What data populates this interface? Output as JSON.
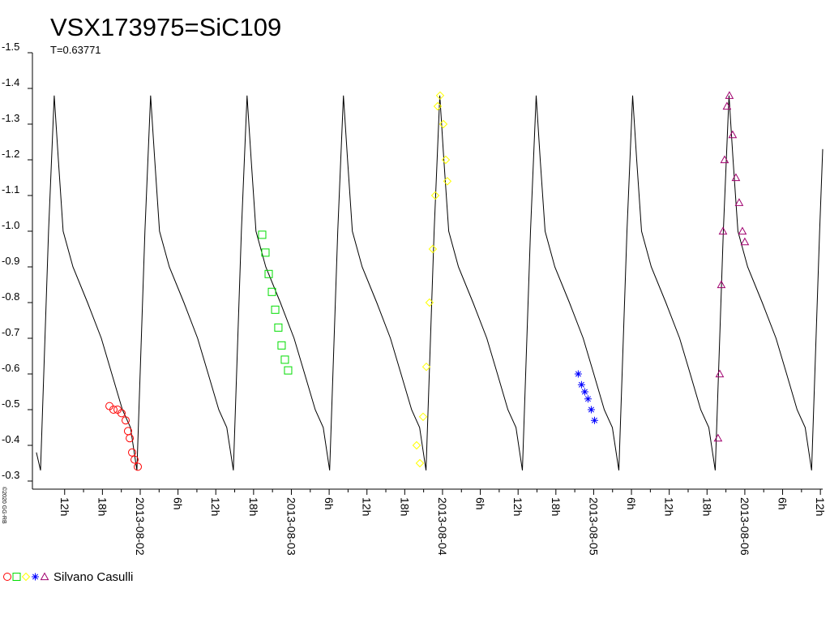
{
  "chart_data": {
    "type": "scatter",
    "title": "VSX173975=SiC109",
    "subtitle": "T=0.63771",
    "credit": "©2020 GG-RB",
    "observer": "Silvano Casulli",
    "ylim": [
      -0.3,
      -1.5
    ],
    "yticks": [
      -1.5,
      -1.4,
      -1.3,
      -1.2,
      -1.1,
      {
        "value": -1,
        "label": "-1.0"
      },
      -0.9,
      -0.8,
      -0.7,
      -0.6,
      -0.5,
      -0.4,
      -0.3
    ],
    "xlim": [
      "2013-08-01 06:53",
      "2013-08-06 12:22"
    ],
    "xticks": [
      {
        "value": "2013-08-01 12:00",
        "label": "12h"
      },
      {
        "value": "2013-08-01 18:00",
        "label": "18h"
      },
      {
        "value": "2013-08-02 00:00",
        "label": "2013-08-02"
      },
      {
        "value": "2013-08-02 06:00",
        "label": "6h"
      },
      {
        "value": "2013-08-02 12:00",
        "label": "12h"
      },
      {
        "value": "2013-08-02 18:00",
        "label": "18h"
      },
      {
        "value": "2013-08-03 00:00",
        "label": "2013-08-03"
      },
      {
        "value": "2013-08-03 06:00",
        "label": "6h"
      },
      {
        "value": "2013-08-03 12:00",
        "label": "12h"
      },
      {
        "value": "2013-08-03 18:00",
        "label": "18h"
      },
      {
        "value": "2013-08-04 00:00",
        "label": "2013-08-04"
      },
      {
        "value": "2013-08-04 06:00",
        "label": "6h"
      },
      {
        "value": "2013-08-04 12:00",
        "label": "12h"
      },
      {
        "value": "2013-08-04 18:00",
        "label": "18h"
      },
      {
        "value": "2013-08-05 00:00",
        "label": "2013-08-05"
      },
      {
        "value": "2013-08-05 06:00",
        "label": "6h"
      },
      {
        "value": "2013-08-05 12:00",
        "label": "12h"
      },
      {
        "value": "2013-08-05 18:00",
        "label": "18h"
      },
      {
        "value": "2013-08-06 00:00",
        "label": "2013-08-06"
      },
      {
        "value": "2013-08-06 06:00",
        "label": "6h"
      },
      {
        "value": "2013-08-06 12:00",
        "label": "12h"
      }
    ],
    "model": {
      "color": "#000000",
      "x": [
        "2013-08-01 07:31",
        "2013-08-01 08:10",
        "2013-08-01 09:27",
        "2013-08-01 10:21",
        "2013-08-01 11:00",
        "2013-08-01 11:46",
        "2013-08-01 13:19",
        "2013-08-01 15:38",
        "2013-08-01 17:49",
        "2013-08-01 19:30",
        "2013-08-01 21:10",
        "2013-08-01 22:27",
        "2013-08-01 23:28",
        "2013-08-02 00:45",
        "2013-08-02 01:39",
        "2013-08-02 02:18",
        "2013-08-02 03:04",
        "2013-08-02 04:37",
        "2013-08-02 06:56",
        "2013-08-02 09:07",
        "2013-08-02 10:48",
        "2013-08-02 12:28",
        "2013-08-02 13:45",
        "2013-08-02 14:47",
        "2013-08-02 16:04",
        "2013-08-02 16:58",
        "2013-08-02 17:37",
        "2013-08-02 18:23",
        "2013-08-02 19:56",
        "2013-08-02 22:15",
        "2013-08-03 00:26",
        "2013-08-03 02:07",
        "2013-08-03 03:47",
        "2013-08-03 05:04",
        "2013-08-03 06:05",
        "2013-08-03 07:22",
        "2013-08-03 08:16",
        "2013-08-03 08:55",
        "2013-08-03 09:41",
        "2013-08-03 11:14",
        "2013-08-03 13:33",
        "2013-08-03 15:44",
        "2013-08-03 17:25",
        "2013-08-03 19:05",
        "2013-08-03 20:22",
        "2013-08-03 21:23",
        "2013-08-03 22:40",
        "2013-08-03 23:34",
        "2013-08-04 00:13",
        "2013-08-04 00:59",
        "2013-08-04 02:32",
        "2013-08-04 04:51",
        "2013-08-04 07:02",
        "2013-08-04 08:43",
        "2013-08-04 10:23",
        "2013-08-04 11:40",
        "2013-08-04 12:41",
        "2013-08-04 13:58",
        "2013-08-04 14:52",
        "2013-08-04 15:31",
        "2013-08-04 16:17",
        "2013-08-04 17:50",
        "2013-08-04 20:09",
        "2013-08-04 22:20",
        "2013-08-05 00:01",
        "2013-08-05 01:41",
        "2013-08-05 02:58",
        "2013-08-05 04:00",
        "2013-08-05 05:17",
        "2013-08-05 06:11",
        "2013-08-05 06:50",
        "2013-08-05 07:36",
        "2013-08-05 09:09",
        "2013-08-05 11:28",
        "2013-08-05 13:39",
        "2013-08-05 15:20",
        "2013-08-05 17:00",
        "2013-08-05 18:17",
        "2013-08-05 19:18",
        "2013-08-05 20:35",
        "2013-08-05 21:29",
        "2013-08-05 22:08",
        "2013-08-05 22:54",
        "2013-08-06 00:27",
        "2013-08-06 02:46",
        "2013-08-06 04:57",
        "2013-08-06 06:38",
        "2013-08-06 08:18",
        "2013-08-06 09:35",
        "2013-08-06 10:36",
        "2013-08-06 11:53",
        "2013-08-06 12:22"
      ],
      "values": [
        -0.38,
        -0.33,
        -1.0,
        -1.38,
        -1.2,
        -1.0,
        -0.9,
        -0.8,
        -0.7,
        -0.6,
        -0.5,
        -0.45,
        -0.33,
        -1.0,
        -1.38,
        -1.2,
        -1.0,
        -0.9,
        -0.8,
        -0.7,
        -0.6,
        -0.5,
        -0.45,
        -0.33,
        -1.0,
        -1.38,
        -1.2,
        -1.0,
        -0.9,
        -0.8,
        -0.7,
        -0.6,
        -0.5,
        -0.45,
        -0.33,
        -1.0,
        -1.38,
        -1.2,
        -1.0,
        -0.9,
        -0.8,
        -0.7,
        -0.6,
        -0.5,
        -0.45,
        -0.33,
        -1.0,
        -1.38,
        -1.2,
        -1.0,
        -0.9,
        -0.8,
        -0.7,
        -0.6,
        -0.5,
        -0.45,
        -0.33,
        -1.0,
        -1.38,
        -1.2,
        -1.0,
        -0.9,
        -0.8,
        -0.7,
        -0.6,
        -0.5,
        -0.45,
        -0.33,
        -1.0,
        -1.38,
        -1.2,
        -1.0,
        -0.9,
        -0.8,
        -0.7,
        -0.6,
        -0.5,
        -0.45,
        -0.33,
        -1.0,
        -1.38,
        -1.2,
        -1.0,
        -0.9,
        -0.8,
        -0.7,
        -0.6,
        -0.5,
        -0.45,
        -0.33,
        -1.0,
        -1.23
      ]
    },
    "series": [
      {
        "color": "#ff0000",
        "marker": "circle",
        "x": [
          "2013-08-01 19:07",
          "2013-08-01 19:45",
          "2013-08-01 20:24",
          "2013-08-01 21:02",
          "2013-08-01 21:41",
          "2013-08-01 22:04",
          "2013-08-01 22:20",
          "2013-08-01 22:43",
          "2013-08-01 23:06",
          "2013-08-01 23:37"
        ],
        "values": [
          -0.51,
          -0.5,
          -0.5,
          -0.49,
          -0.47,
          -0.44,
          -0.42,
          -0.38,
          -0.36,
          -0.34
        ]
      },
      {
        "color": "#00dd00",
        "marker": "square",
        "x": [
          "2013-08-02 19:22",
          "2013-08-02 19:53",
          "2013-08-02 20:24",
          "2013-08-02 20:55",
          "2013-08-02 21:26",
          "2013-08-02 21:56",
          "2013-08-02 22:27",
          "2013-08-02 22:58",
          "2013-08-02 23:29"
        ],
        "values": [
          -0.99,
          -0.94,
          -0.88,
          -0.83,
          -0.78,
          -0.73,
          -0.68,
          -0.64,
          -0.61
        ]
      },
      {
        "color": "#ffff00",
        "marker": "diamond",
        "x": [
          "2013-08-03 19:53",
          "2013-08-03 20:24",
          "2013-08-03 20:55",
          "2013-08-03 21:26",
          "2013-08-03 21:56",
          "2013-08-03 22:27",
          "2013-08-03 22:51",
          "2013-08-03 23:14",
          "2013-08-03 23:37",
          "2013-08-04 00:08",
          "2013-08-04 00:31",
          "2013-08-04 00:46"
        ],
        "values": [
          -0.4,
          -0.35,
          -0.48,
          -0.62,
          -0.8,
          -0.95,
          -1.1,
          -1.35,
          -1.38,
          -1.3,
          -1.2,
          -1.14
        ]
      },
      {
        "color": "#0000ff",
        "marker": "star",
        "x": [
          "2013-08-04 21:33",
          "2013-08-04 22:04",
          "2013-08-04 22:35",
          "2013-08-04 23:06",
          "2013-08-04 23:37",
          "2013-08-05 00:08"
        ],
        "values": [
          -0.6,
          -0.57,
          -0.55,
          -0.53,
          -0.5,
          -0.47
        ]
      },
      {
        "color": "#a0006e",
        "marker": "triangle",
        "x": [
          "2013-08-05 19:45",
          "2013-08-05 20:01",
          "2013-08-05 20:16",
          "2013-08-05 20:32",
          "2013-08-05 20:47",
          "2013-08-05 21:10",
          "2013-08-05 21:33",
          "2013-08-05 22:04",
          "2013-08-05 22:35",
          "2013-08-05 23:06",
          "2013-08-05 23:37",
          "2013-08-06 00:00"
        ],
        "values": [
          -0.42,
          -0.6,
          -0.85,
          -1.0,
          -1.2,
          -1.35,
          -1.38,
          -1.27,
          -1.15,
          -1.08,
          -1.0,
          -0.97
        ]
      }
    ]
  }
}
